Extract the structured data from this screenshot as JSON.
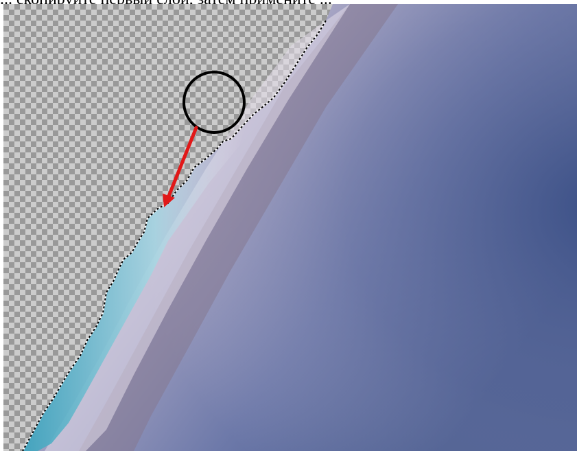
{
  "caption": {
    "text": "... скопируйте первый слой, затем примените ..."
  },
  "annotation": {
    "circle_color": "#000000",
    "arrow_color": "#e11818"
  },
  "colors": {
    "sky_dark": "#3f5489",
    "sky_mid": "#7a7fa6",
    "sky_light": "#c8c2d8",
    "haze_band": "#8c7f98",
    "edge_fringe": "#3fa6bf",
    "checker_light": "#cccccc",
    "checker_dark": "#999999"
  }
}
